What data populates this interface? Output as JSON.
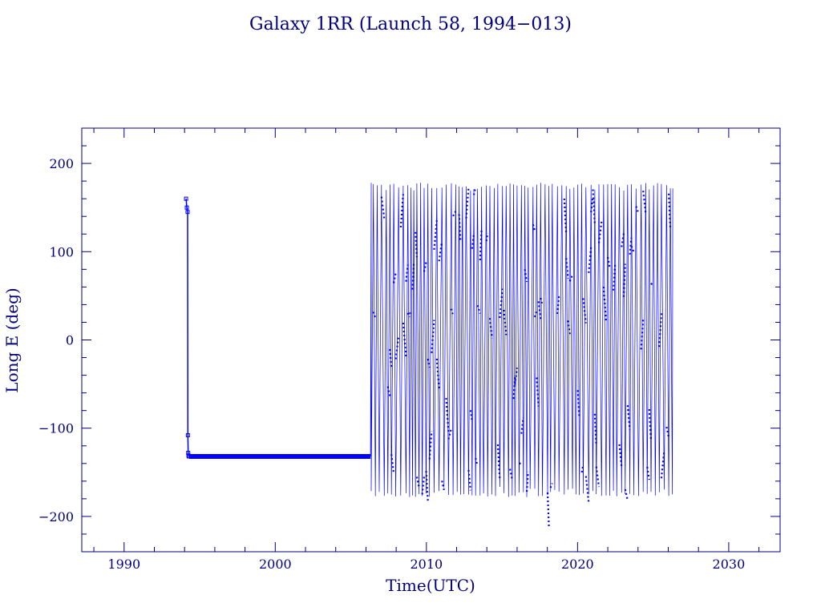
{
  "chart_data": {
    "type": "line",
    "title": "Galaxy 1RR (Launch 58, 1994−013)",
    "xlabel": "Time(UTC)",
    "ylabel": "Long E (deg)",
    "xlim": [
      1987.2,
      2033.4
    ],
    "ylim": [
      -240,
      240
    ],
    "x_ticks": [
      1990,
      2000,
      2010,
      2020,
      2030
    ],
    "x_tick_labels": [
      "1990",
      "2000",
      "2010",
      "2020",
      "2030"
    ],
    "y_ticks": [
      -200,
      -100,
      0,
      100,
      200
    ],
    "y_tick_labels": [
      "−200",
      "−100",
      "0",
      "100",
      "200"
    ],
    "grid": false,
    "colors": {
      "axis": "#00007f",
      "series": "#0000ff"
    },
    "series": [
      {
        "segments": [
          {
            "phase": "initial",
            "x": [
              1994.1,
              1994.15,
              1994.2,
              1994.22,
              1994.24,
              1994.26,
              1994.28
            ],
            "y": [
              160,
              150,
              145,
              -108,
              -128,
              -131,
              -132
            ]
          },
          {
            "phase": "station-kept",
            "x": [
              1994.3,
              2006.3
            ],
            "y": [
              -132,
              -132
            ]
          },
          {
            "phase": "drifting",
            "x_start": 2006.35,
            "x_end": 2026.3,
            "cycle_years": 0.14,
            "y_range": [
              -178,
              178
            ]
          }
        ]
      }
    ]
  }
}
